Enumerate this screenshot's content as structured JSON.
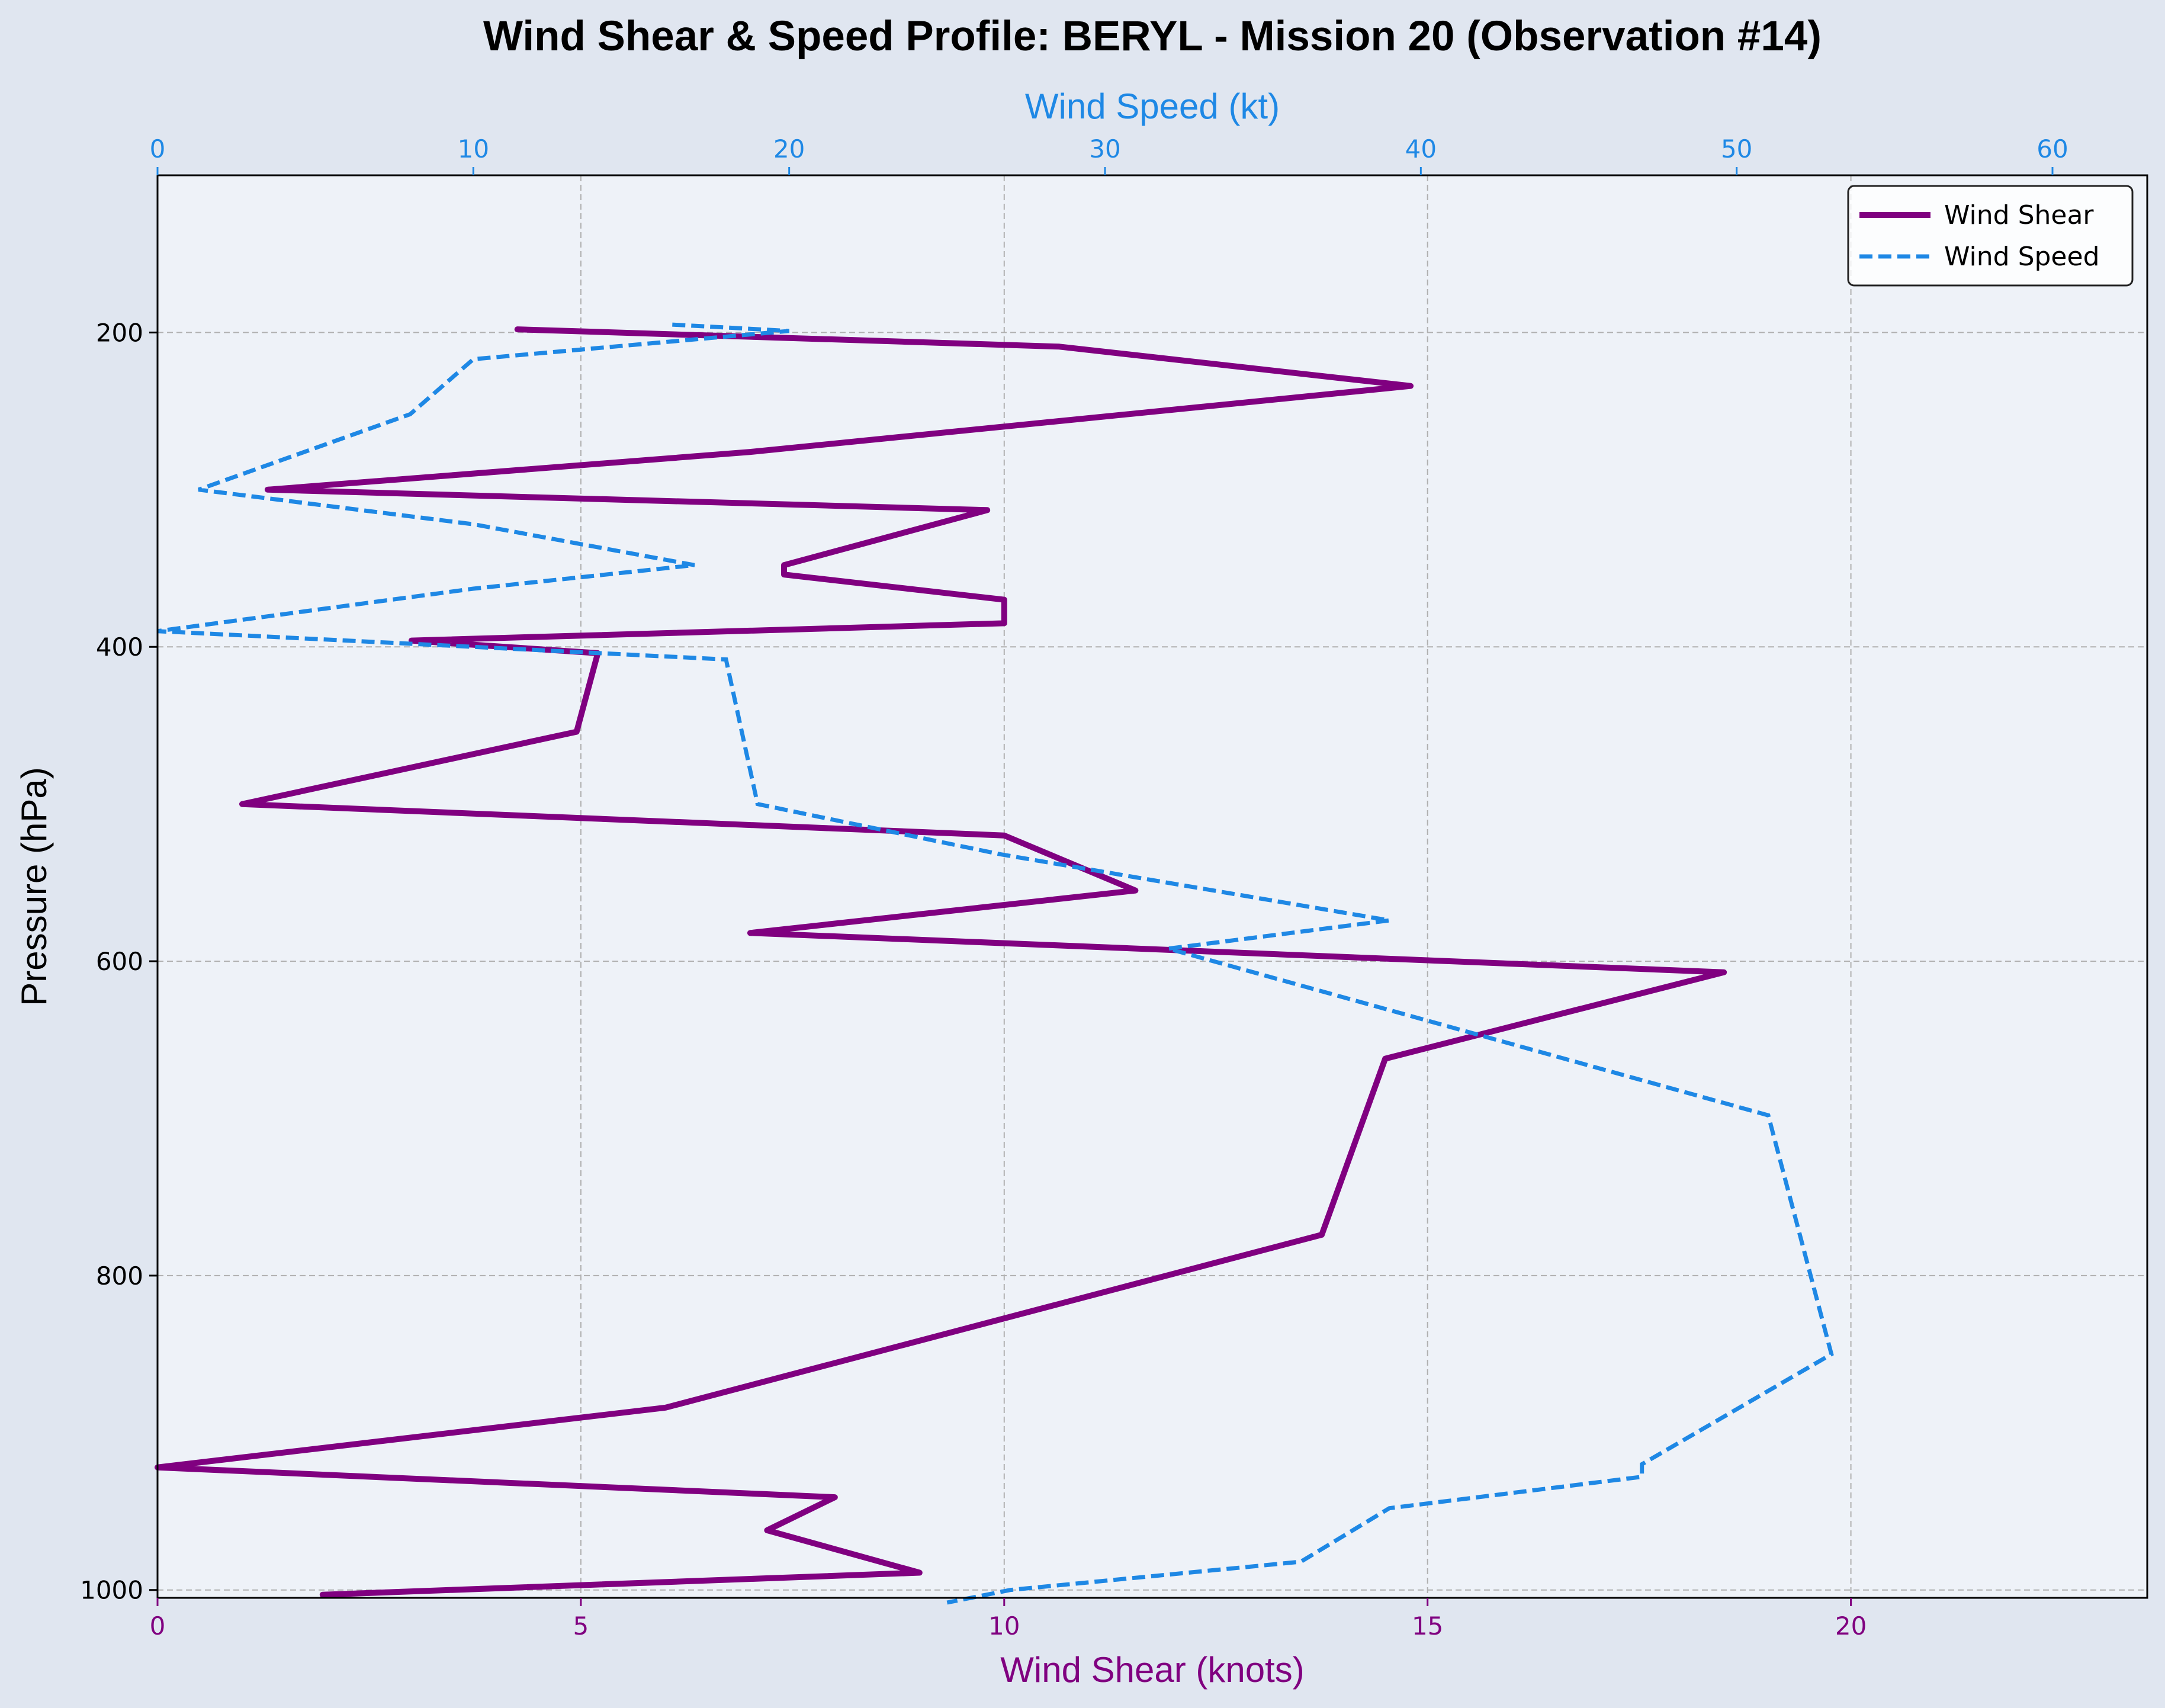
{
  "chart_data": {
    "type": "line",
    "title": "Wind Shear & Speed Profile: BERYL - Mission 20 (Observation #14)",
    "y": {
      "label": "Pressure (hPa)",
      "range": [
        1005,
        100
      ],
      "inverted": true,
      "ticks": [
        200,
        400,
        600,
        800,
        1000
      ]
    },
    "x_bottom": {
      "label": "Wind Shear (knots)",
      "range": [
        0,
        23.5
      ],
      "ticks": [
        0,
        5,
        10,
        15,
        20
      ],
      "color": "#800080"
    },
    "x_top": {
      "label": "Wind Speed (kt)",
      "range": [
        0,
        63
      ],
      "ticks": [
        0,
        10,
        20,
        30,
        40,
        50,
        60
      ],
      "color": "#1e88e5"
    },
    "grid": true,
    "legend_position": "top-right",
    "series": [
      {
        "name": "Wind Shear",
        "axis": "bottom",
        "color": "#800080",
        "style": "solid",
        "points": [
          [
            4.25,
            198
          ],
          [
            10.65,
            209
          ],
          [
            14.8,
            234
          ],
          [
            7.0,
            276
          ],
          [
            1.3,
            300
          ],
          [
            9.8,
            313
          ],
          [
            7.4,
            348
          ],
          [
            7.4,
            354
          ],
          [
            10.0,
            370
          ],
          [
            10.0,
            385
          ],
          [
            3.0,
            396
          ],
          [
            5.2,
            404
          ],
          [
            4.95,
            454
          ],
          [
            1.0,
            500
          ],
          [
            10.0,
            520
          ],
          [
            11.55,
            555
          ],
          [
            7.0,
            582
          ],
          [
            18.5,
            607
          ],
          [
            14.5,
            662
          ],
          [
            13.75,
            774
          ],
          [
            6.0,
            884
          ],
          [
            0.0,
            922
          ],
          [
            8.0,
            941
          ],
          [
            7.2,
            962
          ],
          [
            9.0,
            989
          ],
          [
            1.95,
            1003
          ]
        ]
      },
      {
        "name": "Wind Speed",
        "axis": "top",
        "color": "#1e88e5",
        "style": "dashed",
        "points": [
          [
            16.3,
            195
          ],
          [
            20.0,
            199
          ],
          [
            10.0,
            217
          ],
          [
            8.0,
            252
          ],
          [
            1.3,
            300
          ],
          [
            10.0,
            322
          ],
          [
            17.0,
            348
          ],
          [
            10.0,
            363
          ],
          [
            0.0,
            390
          ],
          [
            18.0,
            408
          ],
          [
            19.0,
            500
          ],
          [
            26.7,
            532
          ],
          [
            39.0,
            574
          ],
          [
            32.0,
            592
          ],
          [
            51.0,
            698
          ],
          [
            53.0,
            850
          ],
          [
            47.0,
            920
          ],
          [
            47.0,
            928
          ],
          [
            39.0,
            948
          ],
          [
            36.2,
            982
          ],
          [
            27.0,
            1000
          ],
          [
            25.0,
            1008
          ]
        ]
      }
    ]
  }
}
